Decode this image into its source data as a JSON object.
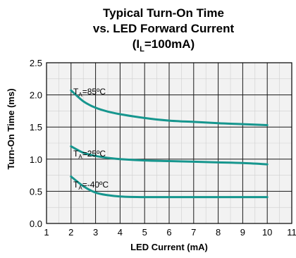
{
  "chart_data": {
    "type": "line",
    "title": {
      "line1": "Typical Turn-On Time",
      "line2": "vs. LED Forward Current",
      "line3_prefix": "(I",
      "line3_sub": "L",
      "line3_suffix": "=100mA)"
    },
    "xlabel": "LED Current (mA)",
    "ylabel": "Turn-On Time (ms)",
    "xlim": [
      1,
      11
    ],
    "ylim": [
      0,
      2.5
    ],
    "xticks": [
      "1",
      "2",
      "3",
      "4",
      "5",
      "6",
      "7",
      "8",
      "9",
      "10",
      "11"
    ],
    "yticks": [
      "0.0",
      "0.5",
      "1.0",
      "1.5",
      "2.0",
      "2.5"
    ],
    "grid": true,
    "line_color": "#16968e",
    "series": [
      {
        "label": {
          "prefix": "T",
          "sub": "A",
          "suffix": "=85ºC"
        },
        "x": [
          2,
          2.5,
          3,
          3.5,
          4,
          5,
          6,
          7,
          8,
          9,
          10
        ],
        "y": [
          2.07,
          1.9,
          1.8,
          1.74,
          1.7,
          1.64,
          1.6,
          1.58,
          1.56,
          1.545,
          1.53
        ]
      },
      {
        "label": {
          "prefix": "T",
          "sub": "A",
          "suffix": "=25ºC"
        },
        "x": [
          2,
          2.5,
          3,
          3.5,
          4,
          5,
          6,
          7,
          8,
          9,
          10
        ],
        "y": [
          1.2,
          1.1,
          1.05,
          1.02,
          1.0,
          0.98,
          0.97,
          0.96,
          0.95,
          0.94,
          0.92
        ]
      },
      {
        "label": {
          "prefix": "T",
          "sub": "A",
          "suffix": "=-40ºC"
        },
        "x": [
          2,
          2.5,
          3,
          3.5,
          4,
          5,
          6,
          7,
          8,
          9,
          10
        ],
        "y": [
          0.73,
          0.58,
          0.48,
          0.44,
          0.42,
          0.41,
          0.41,
          0.41,
          0.41,
          0.41,
          0.41
        ]
      }
    ]
  }
}
